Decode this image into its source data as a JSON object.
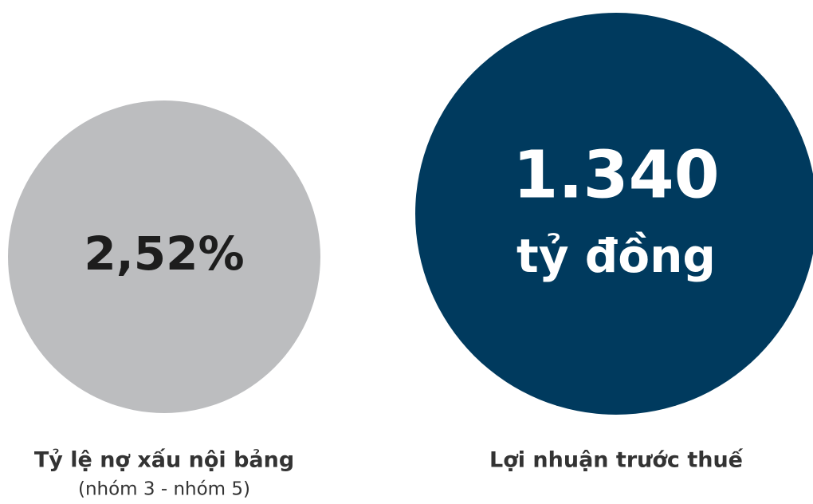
{
  "items": [
    {
      "value": "2,52%",
      "caption": "Tỷ lệ nợ xấu nội bảng",
      "subcaption": "(nhóm 3 - nhóm 5)"
    },
    {
      "value": "1.340",
      "unit": "tỷ đồng",
      "caption": "Lợi nhuận trước thuế"
    }
  ]
}
